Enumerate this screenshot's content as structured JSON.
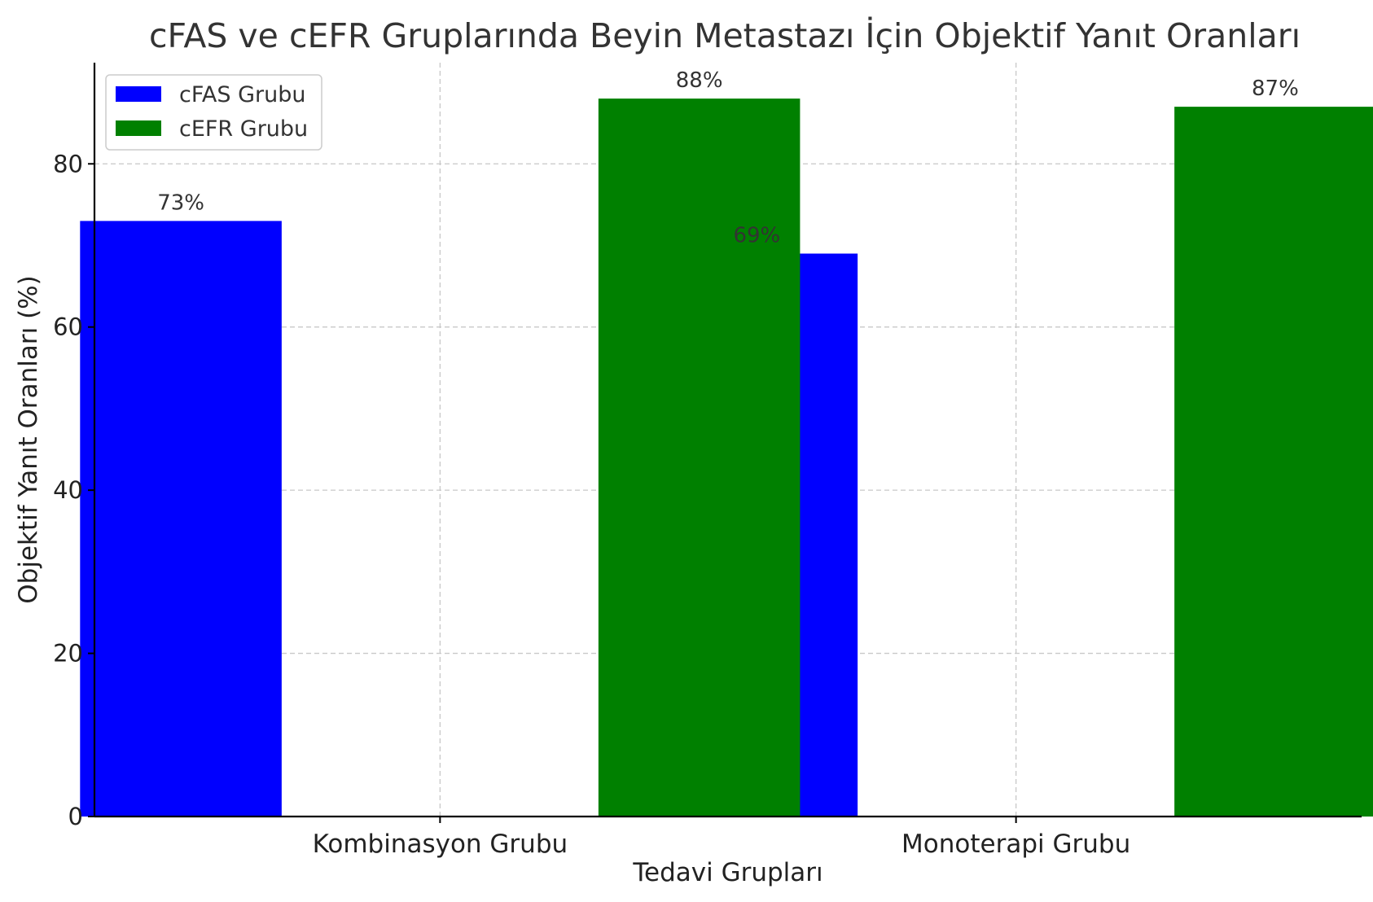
{
  "chart_data": {
    "type": "bar",
    "title": "cFAS ve cEFR Gruplarında Beyin Metastazı İçin Objektif Yanıt Oranları",
    "xlabel": "Tedavi Grupları",
    "ylabel": "Objektif Yanıt Oranları (%)",
    "categories": [
      "Kombinasyon Grubu",
      "Monoterapi Grubu"
    ],
    "series": [
      {
        "name": "cFAS Grubu",
        "values": [
          73,
          69
        ],
        "color": "#0000ff",
        "data_labels": [
          "73%",
          "69%"
        ]
      },
      {
        "name": "cEFR Grubu",
        "values": [
          88,
          87
        ],
        "color": "#008000",
        "data_labels": [
          "88%",
          "87%"
        ]
      }
    ],
    "ylim": [
      0,
      92.4
    ],
    "yticks": [
      0,
      20,
      40,
      60,
      80
    ],
    "grid": true,
    "legend_position": "top-left"
  }
}
